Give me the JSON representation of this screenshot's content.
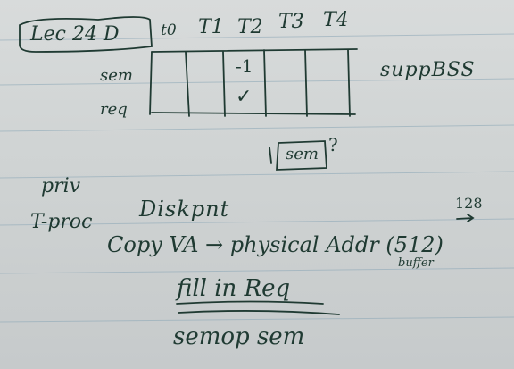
{
  "notes": {
    "title": "Lec 24 D",
    "columns": [
      "t0",
      "T1",
      "T2",
      "T3",
      "T4"
    ],
    "rows": [
      "sem",
      "req"
    ],
    "cells": {
      "sem_t2": "-1",
      "req_t2": "✓"
    },
    "side_note": "suppBSS",
    "boxed_question": {
      "boxed": "sem",
      "mark": "?"
    },
    "left_labels": [
      "priv",
      "T-proc"
    ],
    "lines": [
      "Diskpnt",
      "Copy VA → physical Addr (512)",
      "fill in Req",
      "semop sem"
    ],
    "superscript": "128",
    "subscript_note": "buffer"
  },
  "colors": {
    "ink": "#1f3a32",
    "rule": "#8aa6b6",
    "paper": "#cfd3d3"
  }
}
